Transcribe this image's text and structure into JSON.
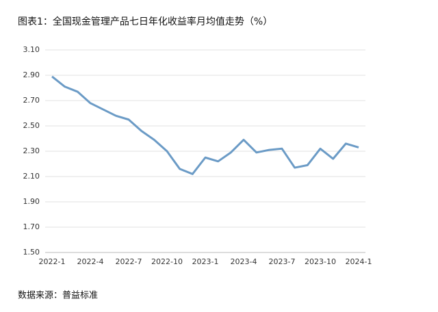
{
  "chart_data": {
    "type": "line",
    "title": "图表1：全国现金管理产品七日年化收益率月均值走势（%）",
    "source": "数据来源：普益标准",
    "categories": [
      "2022-1",
      null,
      null,
      "2022-4",
      null,
      null,
      "2022-7",
      null,
      null,
      "2022-10",
      null,
      null,
      "2023-1",
      null,
      null,
      "2023-4",
      null,
      null,
      "2023-7",
      null,
      null,
      "2023-10",
      null,
      null,
      "2024-1"
    ],
    "series": [
      {
        "color": "#6b9bc6",
        "values": [
          2.89,
          2.81,
          2.77,
          2.68,
          2.63,
          2.58,
          2.55,
          2.46,
          2.39,
          2.3,
          2.16,
          2.12,
          2.25,
          2.22,
          2.29,
          2.39,
          2.29,
          2.31,
          2.32,
          2.17,
          2.19,
          2.32,
          2.24,
          2.36,
          2.33
        ]
      }
    ],
    "ylim": [
      1.5,
      3.1
    ],
    "yticks": [
      {
        "value": 1.5,
        "label": "1.50"
      },
      {
        "value": 1.7,
        "label": "1.70"
      },
      {
        "value": 1.9,
        "label": "1.90"
      },
      {
        "value": 2.1,
        "label": "2.10"
      },
      {
        "value": 2.3,
        "label": "2.30"
      },
      {
        "value": 2.5,
        "label": "2.50"
      },
      {
        "value": 2.7,
        "label": "2.70"
      },
      {
        "value": 2.9,
        "label": "2.90"
      },
      {
        "value": 3.1,
        "label": "3.10"
      }
    ],
    "grid": true
  }
}
